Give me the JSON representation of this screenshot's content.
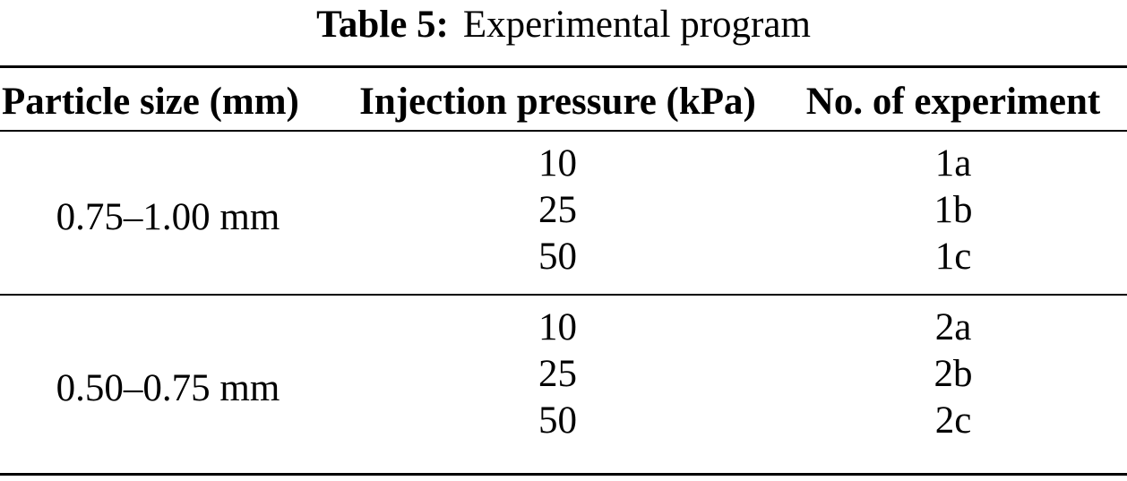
{
  "caption": {
    "label": "Table 5:",
    "text": "Experimental program"
  },
  "table": {
    "columns": [
      "Particle size (mm)",
      "Injection pressure (kPa)",
      "No. of experiment"
    ],
    "groups": [
      {
        "particle_size": "0.75–1.00 mm",
        "rows": [
          {
            "pressure": "10",
            "experiment": "1a"
          },
          {
            "pressure": "25",
            "experiment": "1b"
          },
          {
            "pressure": "50",
            "experiment": "1c"
          }
        ]
      },
      {
        "particle_size": "0.50–0.75 mm",
        "rows": [
          {
            "pressure": "10",
            "experiment": "2a"
          },
          {
            "pressure": "25",
            "experiment": "2b"
          },
          {
            "pressure": "50",
            "experiment": "2c"
          }
        ]
      }
    ]
  },
  "colors": {
    "text": "#000000",
    "background": "#ffffff",
    "rule": "#000000"
  }
}
